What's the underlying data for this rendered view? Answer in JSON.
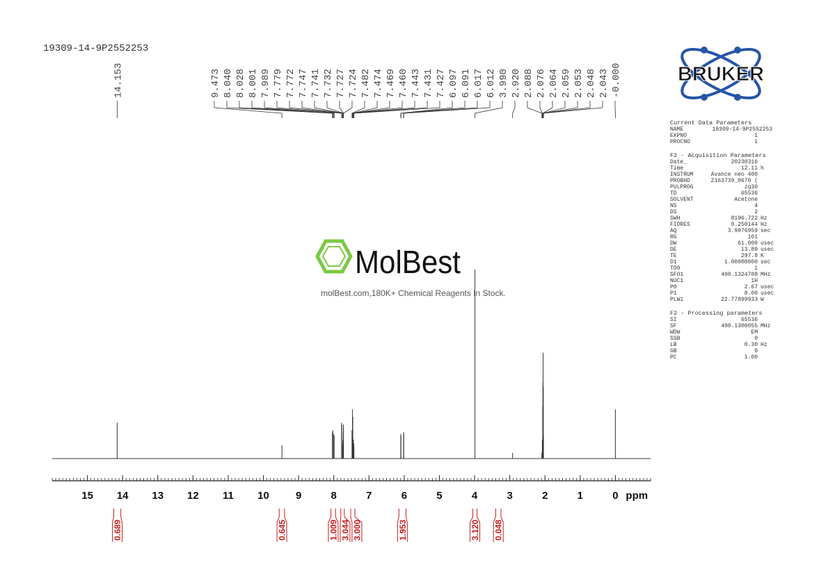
{
  "sample_name": "19309-14-9P2552253",
  "logo_text": "BRUKER",
  "watermark": {
    "brand": "MolBest",
    "tagline": "molBest.com,180K+ Chemical Reagents In Stock."
  },
  "chart_data": {
    "type": "nmr",
    "x_label": "ppm",
    "xlim": [
      16,
      -1
    ],
    "xticks": [
      15,
      14,
      13,
      12,
      11,
      10,
      9,
      8,
      7,
      6,
      5,
      4,
      3,
      2,
      1,
      0
    ],
    "minor_step": 0.1,
    "color": "#333333",
    "peaks": {
      "x": [
        14.153,
        9.473,
        8.04,
        8.028,
        8.001,
        7.989,
        7.779,
        7.772,
        7.747,
        7.741,
        7.732,
        7.727,
        7.724,
        7.482,
        7.474,
        7.469,
        7.46,
        7.443,
        7.431,
        7.427,
        6.097,
        6.091,
        6.017,
        6.012,
        3.99,
        2.92,
        2.088,
        2.076,
        2.064,
        2.059,
        2.053,
        2.048,
        2.043,
        0
      ],
      "x_labels": [
        "14.153",
        "9.473",
        "8.040",
        "8.028",
        "8.001",
        "7.989",
        "7.779",
        "7.772",
        "7.747",
        "7.741",
        "7.732",
        "7.727",
        "7.724",
        "7.482",
        "7.474",
        "7.469",
        "7.460",
        "7.443",
        "7.431",
        "7.427",
        "6.097",
        "6.091",
        "6.017",
        "6.012",
        "3.990",
        "2.920",
        "2.088",
        "2.076",
        "2.064",
        "2.059",
        "2.053",
        "2.048",
        "2.043",
        "-0.000"
      ],
      "values": [
        19,
        7,
        14,
        15,
        13,
        12,
        19,
        18,
        8,
        10,
        14,
        18,
        16,
        15,
        12,
        26,
        22,
        10,
        8,
        6,
        13,
        12,
        14,
        13,
        100,
        3,
        3,
        10,
        28,
        40,
        56,
        38,
        12,
        26
      ]
    },
    "integrals": {
      "ranges": [
        [
          14.25,
          14.05
        ],
        [
          9.55,
          9.4
        ],
        [
          8.08,
          7.95
        ],
        [
          7.8,
          7.7
        ],
        [
          7.52,
          7.4
        ],
        [
          6.15,
          5.95
        ],
        [
          4.05,
          3.93
        ],
        [
          3.4,
          3.25
        ]
      ],
      "values": [
        0.689,
        0.645,
        1.009,
        3.044,
        3,
        1.953,
        3.12,
        0.048
      ],
      "value_labels": [
        "0.689",
        "0.645",
        "1.009",
        "3.044",
        "3.000",
        "1.953",
        "3.120",
        "0.048"
      ],
      "color": "#c81e1e"
    }
  },
  "parameters": [
    {
      "title": "Current Data Parameters",
      "rows": [
        [
          "NAME",
          "19309-14-9P2552253"
        ],
        [
          "EXPNO",
          "1"
        ],
        [
          "PROCNO",
          "1"
        ]
      ]
    },
    {
      "title": "F2 - Acquisition Parameters",
      "rows": [
        [
          "Date_",
          "20230316"
        ],
        [
          "Time",
          "12.11",
          "h"
        ],
        [
          "INSTRUM",
          "Avance neo 400"
        ],
        [
          "PROBHD",
          "Z163739_0670 ("
        ],
        [
          "PULPROG",
          "zg30"
        ],
        [
          "TD",
          "65536"
        ],
        [
          "SOLVENT",
          "Acetone"
        ],
        [
          "NS",
          "4"
        ],
        [
          "DS",
          "2"
        ],
        [
          "SWH",
          "8196.722",
          "Hz"
        ],
        [
          "FIDRES",
          "0.250144",
          "Hz"
        ],
        [
          "AQ",
          "3.9976959",
          "sec"
        ],
        [
          "RG",
          "101"
        ],
        [
          "DW",
          "61.000",
          "usec"
        ],
        [
          "DE",
          "13.89",
          "usec"
        ],
        [
          "TE",
          "297.8",
          "K"
        ],
        [
          "D1",
          "1.00000000",
          "sec"
        ],
        [
          "TD0",
          "1"
        ],
        [
          "SFO1",
          "400.1324708",
          "MHz"
        ],
        [
          "NUC1",
          "1H"
        ],
        [
          "P0",
          "2.67",
          "usec"
        ],
        [
          "P1",
          "8.00",
          "usec"
        ],
        [
          "PLW1",
          "22.77899933",
          "W"
        ]
      ]
    },
    {
      "title": "F2 - Processing parameters",
      "rows": [
        [
          "SI",
          "65536"
        ],
        [
          "SF",
          "400.1300055",
          "MHz"
        ],
        [
          "WDW",
          "EM"
        ],
        [
          "SSB",
          "0"
        ],
        [
          "LB",
          "0.30",
          "Hz"
        ],
        [
          "GB",
          "0"
        ],
        [
          "PC",
          "1.00"
        ]
      ]
    }
  ]
}
